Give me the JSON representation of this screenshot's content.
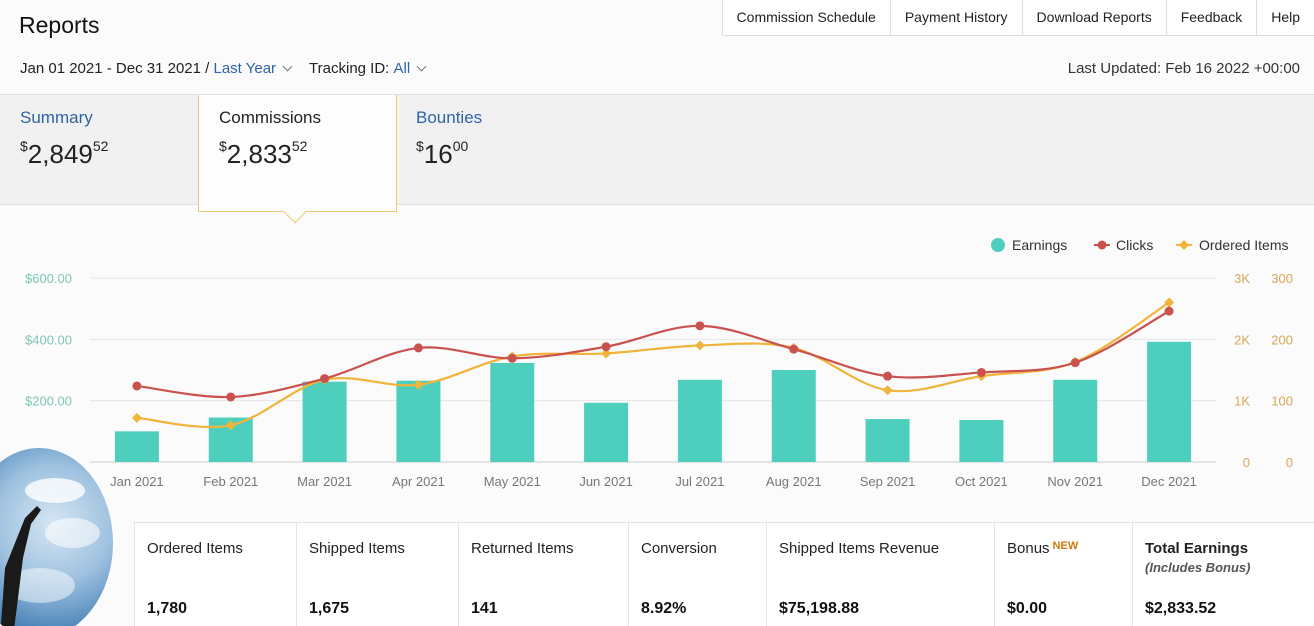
{
  "title": "Reports",
  "nav": [
    "Commission Schedule",
    "Payment History",
    "Download Reports",
    "Feedback",
    "Help"
  ],
  "filters": {
    "date_range": "Jan 01 2021 - Dec 31 2021 /",
    "period": "Last Year",
    "tracking_label": "Tracking ID:",
    "tracking_value": "All"
  },
  "last_updated": "Last Updated: Feb 16 2022 +00:00",
  "tabs": [
    {
      "label": "Summary",
      "currency": "$",
      "dollars": "2,849",
      "cents": "52"
    },
    {
      "label": "Commissions",
      "currency": "$",
      "dollars": "2,833",
      "cents": "52"
    },
    {
      "label": "Bounties",
      "currency": "$",
      "dollars": "16",
      "cents": "00"
    }
  ],
  "colors": {
    "earnings": "#4ecfbe",
    "clicks": "#c9524e",
    "ordered": "#f0b43a",
    "link": "#2f63a8"
  },
  "chart_data": {
    "type": "bar",
    "categories": [
      "Jan 2021",
      "Feb 2021",
      "Mar 2021",
      "Apr 2021",
      "May 2021",
      "Jun 2021",
      "Jul 2021",
      "Aug 2021",
      "Sep 2021",
      "Oct 2021",
      "Nov 2021",
      "Dec 2021"
    ],
    "series": [
      {
        "name": "Earnings",
        "type": "bar",
        "axis": "left",
        "values": [
          100,
          145,
          262,
          265,
          323,
          193,
          268,
          300,
          140,
          137,
          268,
          392
        ]
      },
      {
        "name": "Clicks",
        "type": "line",
        "axis": "right1",
        "values": [
          1240,
          1060,
          1360,
          1860,
          1690,
          1880,
          2220,
          1840,
          1400,
          1460,
          1620,
          2460
        ]
      },
      {
        "name": "Ordered Items",
        "type": "line",
        "axis": "right2",
        "values": [
          72,
          60,
          134,
          126,
          172,
          177,
          190,
          186,
          117,
          140,
          163,
          260
        ]
      }
    ],
    "y_left": {
      "ticks": [
        "$600.00",
        "$400.00",
        "$200.00",
        "0"
      ],
      "ylim": [
        0,
        600
      ]
    },
    "y_right1": {
      "ticks": [
        "3K",
        "2K",
        "1K",
        "0"
      ],
      "ylim": [
        0,
        3000
      ]
    },
    "y_right2": {
      "ticks": [
        "300",
        "200",
        "100",
        "0"
      ],
      "ylim": [
        0,
        300
      ]
    },
    "legend": [
      "Earnings",
      "Clicks",
      "Ordered Items"
    ],
    "legend_position": "top-right",
    "grid": true
  },
  "stats": [
    {
      "label": "Ordered Items",
      "value": "1,780"
    },
    {
      "label": "Shipped Items",
      "value": "1,675"
    },
    {
      "label": "Returned Items",
      "value": "141"
    },
    {
      "label": "Conversion",
      "value": "8.92%"
    },
    {
      "label": "Shipped Items Revenue",
      "value": "$75,198.88"
    },
    {
      "label": "Bonus",
      "badge": "NEW",
      "value": "$0.00"
    },
    {
      "label": "Total Earnings",
      "sub": "(Includes Bonus)",
      "value": "$2,833.52"
    }
  ]
}
